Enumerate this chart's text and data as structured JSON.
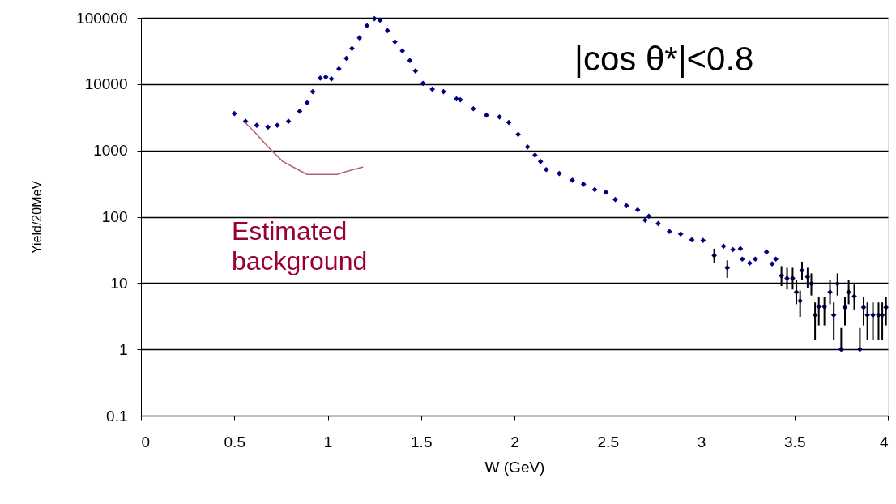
{
  "chart_data": {
    "type": "scatter",
    "xlabel": "W (GeV)",
    "ylabel": "Yield/20MeV",
    "log": "y",
    "grid": "y",
    "xlim": [
      0,
      4
    ],
    "xticks": [
      0,
      0.5,
      1,
      1.5,
      2,
      2.5,
      3,
      3.5,
      4
    ],
    "ylim": [
      0.1,
      100000
    ],
    "yticks": [
      0.1,
      1,
      10,
      100,
      1000,
      10000,
      100000
    ],
    "annotations": [
      "|cos θ*|<0.8"
    ],
    "series": [
      {
        "color": "#000080",
        "marker": "diamond",
        "x": [
          0.5,
          0.56,
          0.62,
          0.68,
          0.73,
          0.79,
          0.85,
          0.89,
          0.92,
          0.96,
          0.99,
          1.02,
          1.06,
          1.1,
          1.13,
          1.17,
          1.21,
          1.25,
          1.28,
          1.32,
          1.36,
          1.4,
          1.44,
          1.47,
          1.51,
          1.56,
          1.62,
          1.69,
          1.71,
          1.78,
          1.85,
          1.92,
          1.97,
          2.02,
          2.07,
          2.11,
          2.14,
          2.17,
          2.24,
          2.31,
          2.37,
          2.43,
          2.49,
          2.54,
          2.6,
          2.66,
          2.7,
          2.72,
          2.77,
          2.83,
          2.89,
          2.95,
          3.01,
          3.07,
          3.12,
          3.14,
          3.17,
          3.21,
          3.22,
          3.26,
          3.29,
          3.35,
          3.38,
          3.4,
          3.43,
          3.46,
          3.49,
          3.51,
          3.53,
          3.54,
          3.57,
          3.59,
          3.61,
          3.63,
          3.66,
          3.69,
          3.71,
          3.73,
          3.75,
          3.77,
          3.79,
          3.82,
          3.85,
          3.87,
          3.89,
          3.92,
          3.95,
          3.97,
          3.99
        ],
        "values": [
          3600,
          2750,
          2400,
          2250,
          2400,
          2750,
          3900,
          5250,
          7700,
          12300,
          12800,
          12000,
          17000,
          24500,
          34500,
          50000,
          76000,
          97000,
          92000,
          64000,
          43500,
          31700,
          22700,
          15800,
          10300,
          8400,
          7700,
          6000,
          5800,
          4250,
          3400,
          3200,
          2650,
          1750,
          1130,
          850,
          680,
          515,
          450,
          355,
          310,
          257,
          235,
          182,
          147,
          127,
          89,
          102,
          79,
          60,
          55,
          45,
          44,
          26,
          36,
          17,
          32,
          33,
          23,
          20,
          23,
          29.5,
          19.5,
          23,
          12.9,
          11.8,
          11.8,
          7.3,
          5.4,
          15.5,
          12.4,
          9.8,
          3.3,
          4.4,
          4.4,
          7.3,
          3.3,
          9.8,
          1,
          4.3,
          7.3,
          6.3,
          1,
          4.3,
          3.3,
          3.3,
          3.3,
          3.3,
          4.3
        ],
        "errors": [
          null,
          null,
          null,
          null,
          null,
          null,
          null,
          null,
          null,
          null,
          null,
          null,
          null,
          null,
          null,
          null,
          null,
          null,
          null,
          null,
          null,
          null,
          null,
          null,
          null,
          null,
          null,
          null,
          null,
          null,
          null,
          null,
          null,
          null,
          null,
          null,
          null,
          null,
          null,
          null,
          null,
          null,
          null,
          null,
          null,
          null,
          null,
          null,
          null,
          null,
          null,
          null,
          null,
          [
            20,
            33
          ],
          null,
          [
            12,
            22
          ],
          null,
          null,
          null,
          null,
          null,
          null,
          null,
          null,
          [
            9,
            18
          ],
          [
            8,
            17
          ],
          [
            8,
            17
          ],
          [
            4.8,
            11
          ],
          [
            3.1,
            7.7
          ],
          [
            11,
            21
          ],
          [
            8.5,
            17
          ],
          [
            6.5,
            14
          ],
          [
            1.4,
            5.1
          ],
          [
            2.3,
            6.2
          ],
          [
            2.3,
            6.2
          ],
          [
            4.8,
            11
          ],
          [
            1.4,
            5.1
          ],
          [
            6.5,
            14
          ],
          [
            1,
            2.1
          ],
          [
            2.3,
            6.2
          ],
          [
            4.8,
            11
          ],
          [
            4,
            9.5
          ],
          [
            1,
            2.1
          ],
          [
            2.3,
            6.2
          ],
          [
            1.4,
            5.1
          ],
          [
            1.4,
            5.1
          ],
          [
            1.4,
            5.1
          ],
          [
            1.4,
            5.1
          ],
          [
            2.3,
            6.2
          ]
        ]
      },
      {
        "type": "line",
        "name": "Estimated background",
        "color": "#b0607a",
        "line_style": "solid",
        "marker": "none",
        "x": [
          0.56,
          0.62,
          0.68,
          0.76,
          0.84,
          0.89,
          1.05,
          1.11,
          1.19
        ],
        "values": [
          2600,
          1750,
          1130,
          680,
          515,
          435,
          435,
          490,
          565
        ]
      }
    ]
  }
}
